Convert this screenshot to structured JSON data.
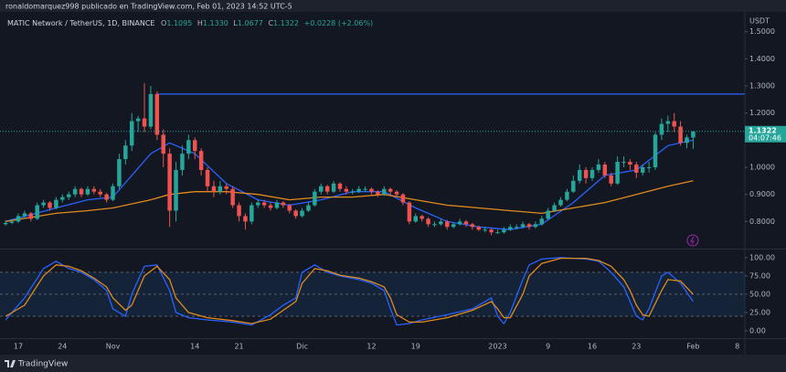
{
  "header": {
    "byline": "ronaldomarquez998 publicado en TradingView.com, Feb 01, 2023 14:52 UTC-5",
    "brand": "TradingView"
  },
  "chart_data": [
    {
      "type": "candlestick",
      "title": "MATIC Network / TetherUS, 1D, BINANCE",
      "quote": {
        "keys": [
          "O",
          "H",
          "L",
          "C"
        ],
        "values": [
          "1.1095",
          "1.1330",
          "1.0677",
          "1.1322"
        ],
        "change": "+0.0228 (+2.06%)"
      },
      "currency": "USDT",
      "up_color": "#26a69a",
      "down_color": "#ef5350",
      "ohlc": [
        [
          0.79,
          0.805,
          0.785,
          0.795
        ],
        [
          0.795,
          0.81,
          0.79,
          0.8
        ],
        [
          0.8,
          0.83,
          0.795,
          0.82
        ],
        [
          0.82,
          0.84,
          0.81,
          0.83
        ],
        [
          0.83,
          0.835,
          0.8,
          0.81
        ],
        [
          0.81,
          0.87,
          0.805,
          0.86
        ],
        [
          0.86,
          0.88,
          0.85,
          0.87
        ],
        [
          0.87,
          0.875,
          0.84,
          0.85
        ],
        [
          0.85,
          0.89,
          0.845,
          0.88
        ],
        [
          0.88,
          0.9,
          0.87,
          0.89
        ],
        [
          0.89,
          0.91,
          0.88,
          0.9
        ],
        [
          0.9,
          0.93,
          0.89,
          0.92
        ],
        [
          0.92,
          0.925,
          0.89,
          0.9
        ],
        [
          0.9,
          0.93,
          0.895,
          0.92
        ],
        [
          0.92,
          0.93,
          0.9,
          0.91
        ],
        [
          0.91,
          0.92,
          0.89,
          0.9
        ],
        [
          0.9,
          0.905,
          0.87,
          0.88
        ],
        [
          0.88,
          0.94,
          0.875,
          0.93
        ],
        [
          0.93,
          1.05,
          0.92,
          1.03
        ],
        [
          1.03,
          1.1,
          1.01,
          1.08
        ],
        [
          1.08,
          1.2,
          1.06,
          1.17
        ],
        [
          1.17,
          1.19,
          1.13,
          1.18
        ],
        [
          1.18,
          1.31,
          1.13,
          1.15
        ],
        [
          1.15,
          1.3,
          1.14,
          1.27
        ],
        [
          1.27,
          1.28,
          1.1,
          1.12
        ],
        [
          1.12,
          1.14,
          1.0,
          1.05
        ],
        [
          1.05,
          1.07,
          0.78,
          0.84
        ],
        [
          0.84,
          1.02,
          0.8,
          0.99
        ],
        [
          0.99,
          1.08,
          0.97,
          1.05
        ],
        [
          1.05,
          1.12,
          1.03,
          1.1
        ],
        [
          1.1,
          1.11,
          1.03,
          1.06
        ],
        [
          1.06,
          1.07,
          0.97,
          0.99
        ],
        [
          0.99,
          1.0,
          0.91,
          0.93
        ],
        [
          0.93,
          0.95,
          0.89,
          0.91
        ],
        [
          0.91,
          0.95,
          0.9,
          0.93
        ],
        [
          0.93,
          0.94,
          0.9,
          0.92
        ],
        [
          0.92,
          0.93,
          0.85,
          0.86
        ],
        [
          0.86,
          0.87,
          0.8,
          0.82
        ],
        [
          0.82,
          0.83,
          0.77,
          0.8
        ],
        [
          0.8,
          0.87,
          0.79,
          0.86
        ],
        [
          0.86,
          0.88,
          0.85,
          0.87
        ],
        [
          0.87,
          0.88,
          0.85,
          0.86
        ],
        [
          0.86,
          0.87,
          0.84,
          0.85
        ],
        [
          0.85,
          0.88,
          0.845,
          0.87
        ],
        [
          0.87,
          0.875,
          0.85,
          0.86
        ],
        [
          0.86,
          0.865,
          0.83,
          0.84
        ],
        [
          0.84,
          0.845,
          0.81,
          0.82
        ],
        [
          0.82,
          0.85,
          0.815,
          0.84
        ],
        [
          0.84,
          0.87,
          0.835,
          0.86
        ],
        [
          0.86,
          0.92,
          0.855,
          0.91
        ],
        [
          0.91,
          0.94,
          0.9,
          0.93
        ],
        [
          0.93,
          0.935,
          0.9,
          0.91
        ],
        [
          0.91,
          0.95,
          0.905,
          0.94
        ],
        [
          0.94,
          0.945,
          0.91,
          0.92
        ],
        [
          0.92,
          0.93,
          0.9,
          0.91
        ],
        [
          0.91,
          0.92,
          0.9,
          0.91
        ],
        [
          0.91,
          0.93,
          0.905,
          0.92
        ],
        [
          0.92,
          0.93,
          0.91,
          0.92
        ],
        [
          0.92,
          0.925,
          0.9,
          0.91
        ],
        [
          0.91,
          0.915,
          0.89,
          0.9
        ],
        [
          0.9,
          0.93,
          0.895,
          0.92
        ],
        [
          0.92,
          0.925,
          0.9,
          0.91
        ],
        [
          0.91,
          0.915,
          0.89,
          0.9
        ],
        [
          0.9,
          0.905,
          0.86,
          0.87
        ],
        [
          0.87,
          0.875,
          0.79,
          0.8
        ],
        [
          0.8,
          0.83,
          0.795,
          0.82
        ],
        [
          0.82,
          0.825,
          0.8,
          0.81
        ],
        [
          0.81,
          0.815,
          0.78,
          0.79
        ],
        [
          0.79,
          0.8,
          0.78,
          0.79
        ],
        [
          0.79,
          0.81,
          0.785,
          0.8
        ],
        [
          0.8,
          0.805,
          0.77,
          0.78
        ],
        [
          0.78,
          0.795,
          0.775,
          0.79
        ],
        [
          0.79,
          0.81,
          0.785,
          0.8
        ],
        [
          0.8,
          0.805,
          0.78,
          0.79
        ],
        [
          0.79,
          0.795,
          0.77,
          0.78
        ],
        [
          0.78,
          0.785,
          0.765,
          0.77
        ],
        [
          0.77,
          0.78,
          0.76,
          0.77
        ],
        [
          0.77,
          0.775,
          0.75,
          0.76
        ],
        [
          0.76,
          0.77,
          0.755,
          0.76
        ],
        [
          0.76,
          0.78,
          0.755,
          0.77
        ],
        [
          0.77,
          0.79,
          0.765,
          0.78
        ],
        [
          0.78,
          0.79,
          0.77,
          0.78
        ],
        [
          0.78,
          0.8,
          0.775,
          0.79
        ],
        [
          0.79,
          0.795,
          0.77,
          0.78
        ],
        [
          0.78,
          0.8,
          0.775,
          0.79
        ],
        [
          0.79,
          0.82,
          0.785,
          0.81
        ],
        [
          0.81,
          0.85,
          0.805,
          0.84
        ],
        [
          0.84,
          0.87,
          0.835,
          0.86
        ],
        [
          0.86,
          0.89,
          0.855,
          0.88
        ],
        [
          0.88,
          0.92,
          0.875,
          0.91
        ],
        [
          0.91,
          0.97,
          0.905,
          0.95
        ],
        [
          0.95,
          1.01,
          0.94,
          0.99
        ],
        [
          0.99,
          1.0,
          0.94,
          0.96
        ],
        [
          0.96,
          1.0,
          0.95,
          0.99
        ],
        [
          0.99,
          1.03,
          0.98,
          1.01
        ],
        [
          1.01,
          1.02,
          0.96,
          0.97
        ],
        [
          0.97,
          0.98,
          0.93,
          0.94
        ],
        [
          0.94,
          1.04,
          0.935,
          1.02
        ],
        [
          1.02,
          1.04,
          1.0,
          1.02
        ],
        [
          1.02,
          1.03,
          0.99,
          1.01
        ],
        [
          1.01,
          1.02,
          0.96,
          0.98
        ],
        [
          0.98,
          1.01,
          0.97,
          1.0
        ],
        [
          1.0,
          1.02,
          0.98,
          1.0
        ],
        [
          1.0,
          1.13,
          0.99,
          1.12
        ],
        [
          1.12,
          1.18,
          1.1,
          1.16
        ],
        [
          1.16,
          1.19,
          1.13,
          1.17
        ],
        [
          1.17,
          1.2,
          1.13,
          1.15
        ],
        [
          1.15,
          1.17,
          1.08,
          1.09
        ],
        [
          1.09,
          1.12,
          1.07,
          1.11
        ],
        [
          1.1095,
          1.133,
          1.0677,
          1.1322
        ]
      ],
      "xlim": [
        -0.9,
        117.2
      ],
      "xticks": [
        {
          "value": 2,
          "label": "17"
        },
        {
          "value": 9,
          "label": "24"
        },
        {
          "value": 17,
          "label": "Nov"
        },
        {
          "value": 30,
          "label": "14"
        },
        {
          "value": 37,
          "label": "21"
        },
        {
          "value": 47,
          "label": "Dic"
        },
        {
          "value": 58,
          "label": "12"
        },
        {
          "value": 65,
          "label": "19"
        },
        {
          "value": 78,
          "label": "2023"
        },
        {
          "value": 86,
          "label": "9"
        },
        {
          "value": 93,
          "label": "16"
        },
        {
          "value": 100,
          "label": "23"
        },
        {
          "value": 109,
          "label": "Feb"
        },
        {
          "value": 116,
          "label": "8"
        }
      ],
      "ylim": [
        0.7,
        1.6
      ],
      "yticks": [
        {
          "value": 0.8,
          "label": "0.8000"
        },
        {
          "value": 0.9,
          "label": "0.9000"
        },
        {
          "value": 1.0,
          "label": "1.0000"
        },
        {
          "value": 1.2,
          "label": "1.2000"
        },
        {
          "value": 1.3,
          "label": "1.3000"
        },
        {
          "value": 1.4,
          "label": "1.4000"
        },
        {
          "value": 1.5,
          "label": "1.5000"
        }
      ],
      "overlays": {
        "x": [
          0,
          8,
          13,
          17,
          23,
          26,
          30,
          35,
          40,
          45,
          50,
          55,
          60,
          65,
          70,
          75,
          80,
          85,
          90,
          95,
          100,
          105,
          109
        ],
        "series": [
          {
            "color": "#2962ff",
            "values": [
              0.8,
              0.85,
              0.88,
              0.89,
              1.05,
              1.09,
              1.05,
              0.94,
              0.88,
              0.86,
              0.88,
              0.91,
              0.91,
              0.85,
              0.8,
              0.78,
              0.77,
              0.79,
              0.87,
              0.97,
              0.99,
              1.08,
              1.1
            ]
          },
          {
            "color": "#e08a1e",
            "values": [
              0.8,
              0.83,
              0.84,
              0.85,
              0.88,
              0.9,
              0.91,
              0.91,
              0.9,
              0.88,
              0.89,
              0.89,
              0.9,
              0.88,
              0.86,
              0.85,
              0.84,
              0.83,
              0.85,
              0.87,
              0.9,
              0.93,
              0.95
            ]
          }
        ]
      },
      "hline": {
        "value": 1.27,
        "from": 24,
        "color": "#2962ff"
      },
      "price_label": {
        "value": 1.1322,
        "label": "1.1322",
        "countdown": "04:07:46"
      }
    },
    {
      "type": "line",
      "xlim": [
        -0.9,
        117.2
      ],
      "ylim": [
        -10,
        111
      ],
      "yticks": [
        {
          "value": 0,
          "label": "0.00"
        },
        {
          "value": 25,
          "label": "25.00"
        },
        {
          "value": 50,
          "label": "50.00"
        },
        {
          "value": 75,
          "label": "75.00"
        },
        {
          "value": 100,
          "label": "100.00"
        }
      ],
      "band": [
        20,
        80
      ],
      "band_lines": [
        20,
        50,
        80
      ],
      "x": [
        0,
        3,
        6,
        8,
        10,
        12,
        14,
        16,
        17,
        19,
        20,
        22,
        24,
        26,
        27,
        29,
        32,
        36,
        39,
        42,
        44,
        46,
        47,
        49,
        51,
        53,
        56,
        58,
        60,
        61,
        62,
        64,
        66,
        70,
        74,
        77,
        78,
        79,
        80,
        82,
        83,
        85,
        88,
        92,
        94,
        96,
        98,
        99,
        100,
        101,
        102,
        104,
        105,
        107,
        109
      ],
      "series": [
        {
          "color": "#2962ff",
          "values": [
            15,
            45,
            85,
            95,
            85,
            80,
            70,
            55,
            30,
            20,
            50,
            88,
            90,
            55,
            25,
            18,
            15,
            12,
            8,
            22,
            35,
            45,
            80,
            90,
            80,
            75,
            70,
            65,
            55,
            30,
            8,
            10,
            15,
            22,
            30,
            45,
            20,
            10,
            25,
            70,
            90,
            98,
            100,
            98,
            95,
            80,
            60,
            40,
            20,
            15,
            30,
            75,
            80,
            65,
            40
          ]
        },
        {
          "color": "#e08a1e",
          "values": [
            20,
            35,
            75,
            90,
            88,
            82,
            72,
            60,
            45,
            28,
            35,
            75,
            88,
            70,
            45,
            25,
            18,
            14,
            10,
            16,
            28,
            40,
            65,
            85,
            82,
            76,
            72,
            67,
            60,
            45,
            22,
            12,
            12,
            18,
            28,
            40,
            30,
            18,
            18,
            50,
            75,
            92,
            99,
            99,
            96,
            88,
            70,
            55,
            35,
            22,
            20,
            55,
            70,
            68,
            50
          ]
        }
      ]
    }
  ]
}
